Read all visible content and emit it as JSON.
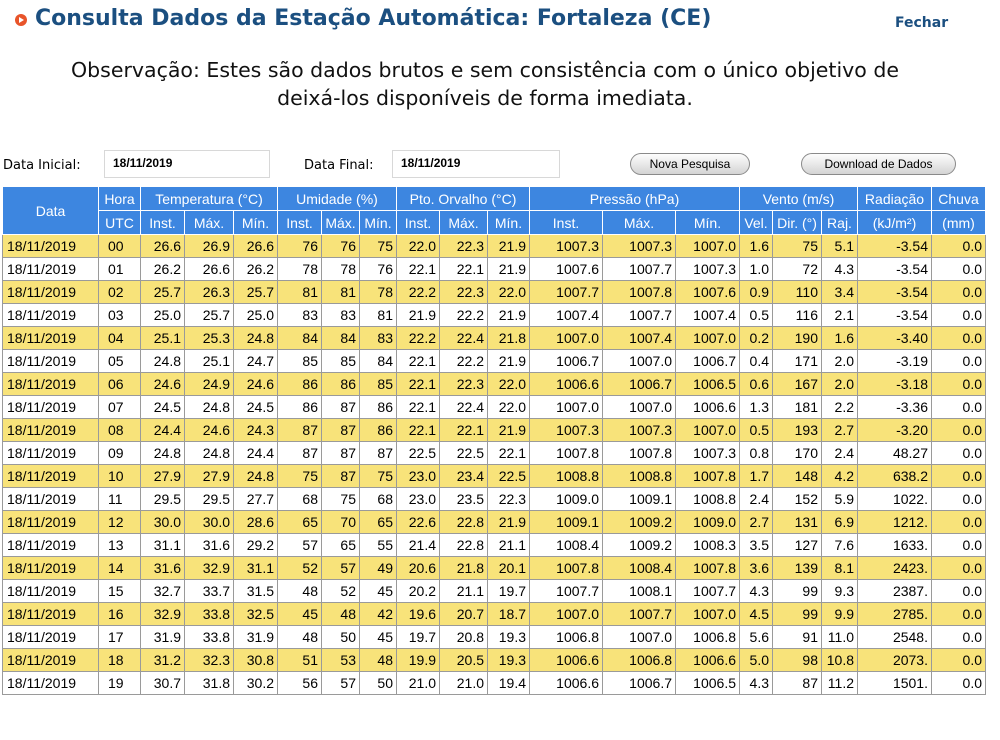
{
  "header": {
    "title": "Consulta Dados da Estação Automática: Fortaleza (CE)",
    "close_label": "Fechar"
  },
  "notice": {
    "line1": "Observação: Estes são dados brutos e sem consistência com o único objetivo de",
    "line2": "deixá-los disponíveis de forma imediata."
  },
  "filters": {
    "start_label": "Data Inicial:",
    "start_value": "18/11/2019",
    "end_label": "Data Final:",
    "end_value": "18/11/2019",
    "new_search_label": "Nova Pesquisa",
    "download_label": "Download de Dados"
  },
  "colors": {
    "header_bg": "#3d86e0",
    "odd_row": "#f8e37a",
    "title": "#1b4f80"
  },
  "table": {
    "groups": [
      "Data",
      "Hora",
      "Temperatura (°C)",
      "Umidade (%)",
      "Pto. Orvalho (°C)",
      "Pressão (hPa)",
      "Vento (m/s)",
      "Radiação",
      "Chuva"
    ],
    "subheaders": [
      "UTC",
      "Inst.",
      "Máx.",
      "Mín.",
      "Inst.",
      "Máx.",
      "Mín.",
      "Inst.",
      "Máx.",
      "Mín.",
      "Inst.",
      "Máx.",
      "Mín.",
      "Vel.",
      "Dir. (°)",
      "Raj.",
      "(kJ/m²)",
      "(mm)"
    ],
    "rows": [
      [
        "18/11/2019",
        "00",
        "26.6",
        "26.9",
        "26.6",
        "76",
        "76",
        "75",
        "22.0",
        "22.3",
        "21.9",
        "1007.3",
        "1007.3",
        "1007.0",
        "1.6",
        "75",
        "5.1",
        "-3.54",
        "0.0"
      ],
      [
        "18/11/2019",
        "01",
        "26.2",
        "26.6",
        "26.2",
        "78",
        "78",
        "76",
        "22.1",
        "22.1",
        "21.9",
        "1007.6",
        "1007.7",
        "1007.3",
        "1.0",
        "72",
        "4.3",
        "-3.54",
        "0.0"
      ],
      [
        "18/11/2019",
        "02",
        "25.7",
        "26.3",
        "25.7",
        "81",
        "81",
        "78",
        "22.2",
        "22.3",
        "22.0",
        "1007.7",
        "1007.8",
        "1007.6",
        "0.9",
        "110",
        "3.4",
        "-3.54",
        "0.0"
      ],
      [
        "18/11/2019",
        "03",
        "25.0",
        "25.7",
        "25.0",
        "83",
        "83",
        "81",
        "21.9",
        "22.2",
        "21.9",
        "1007.4",
        "1007.7",
        "1007.4",
        "0.5",
        "116",
        "2.1",
        "-3.54",
        "0.0"
      ],
      [
        "18/11/2019",
        "04",
        "25.1",
        "25.3",
        "24.8",
        "84",
        "84",
        "83",
        "22.2",
        "22.4",
        "21.8",
        "1007.0",
        "1007.4",
        "1007.0",
        "0.2",
        "190",
        "1.6",
        "-3.40",
        "0.0"
      ],
      [
        "18/11/2019",
        "05",
        "24.8",
        "25.1",
        "24.7",
        "85",
        "85",
        "84",
        "22.1",
        "22.2",
        "21.9",
        "1006.7",
        "1007.0",
        "1006.7",
        "0.4",
        "171",
        "2.0",
        "-3.19",
        "0.0"
      ],
      [
        "18/11/2019",
        "06",
        "24.6",
        "24.9",
        "24.6",
        "86",
        "86",
        "85",
        "22.1",
        "22.3",
        "22.0",
        "1006.6",
        "1006.7",
        "1006.5",
        "0.6",
        "167",
        "2.0",
        "-3.18",
        "0.0"
      ],
      [
        "18/11/2019",
        "07",
        "24.5",
        "24.8",
        "24.5",
        "86",
        "87",
        "86",
        "22.1",
        "22.4",
        "22.0",
        "1007.0",
        "1007.0",
        "1006.6",
        "1.3",
        "181",
        "2.2",
        "-3.36",
        "0.0"
      ],
      [
        "18/11/2019",
        "08",
        "24.4",
        "24.6",
        "24.3",
        "87",
        "87",
        "86",
        "22.1",
        "22.1",
        "21.9",
        "1007.3",
        "1007.3",
        "1007.0",
        "0.5",
        "193",
        "2.7",
        "-3.20",
        "0.0"
      ],
      [
        "18/11/2019",
        "09",
        "24.8",
        "24.8",
        "24.4",
        "87",
        "87",
        "87",
        "22.5",
        "22.5",
        "22.1",
        "1007.8",
        "1007.8",
        "1007.3",
        "0.8",
        "170",
        "2.4",
        "48.27",
        "0.0"
      ],
      [
        "18/11/2019",
        "10",
        "27.9",
        "27.9",
        "24.8",
        "75",
        "87",
        "75",
        "23.0",
        "23.4",
        "22.5",
        "1008.8",
        "1008.8",
        "1007.8",
        "1.7",
        "148",
        "4.2",
        "638.2",
        "0.0"
      ],
      [
        "18/11/2019",
        "11",
        "29.5",
        "29.5",
        "27.7",
        "68",
        "75",
        "68",
        "23.0",
        "23.5",
        "22.3",
        "1009.0",
        "1009.1",
        "1008.8",
        "2.4",
        "152",
        "5.9",
        "1022.",
        "0.0"
      ],
      [
        "18/11/2019",
        "12",
        "30.0",
        "30.0",
        "28.6",
        "65",
        "70",
        "65",
        "22.6",
        "22.8",
        "21.9",
        "1009.1",
        "1009.2",
        "1009.0",
        "2.7",
        "131",
        "6.9",
        "1212.",
        "0.0"
      ],
      [
        "18/11/2019",
        "13",
        "31.1",
        "31.6",
        "29.2",
        "57",
        "65",
        "55",
        "21.4",
        "22.8",
        "21.1",
        "1008.4",
        "1009.2",
        "1008.3",
        "3.5",
        "127",
        "7.6",
        "1633.",
        "0.0"
      ],
      [
        "18/11/2019",
        "14",
        "31.6",
        "32.9",
        "31.1",
        "52",
        "57",
        "49",
        "20.6",
        "21.8",
        "20.1",
        "1007.8",
        "1008.4",
        "1007.8",
        "3.6",
        "139",
        "8.1",
        "2423.",
        "0.0"
      ],
      [
        "18/11/2019",
        "15",
        "32.7",
        "33.7",
        "31.5",
        "48",
        "52",
        "45",
        "20.2",
        "21.1",
        "19.7",
        "1007.7",
        "1008.1",
        "1007.7",
        "4.3",
        "99",
        "9.3",
        "2387.",
        "0.0"
      ],
      [
        "18/11/2019",
        "16",
        "32.9",
        "33.8",
        "32.5",
        "45",
        "48",
        "42",
        "19.6",
        "20.7",
        "18.7",
        "1007.0",
        "1007.7",
        "1007.0",
        "4.5",
        "99",
        "9.9",
        "2785.",
        "0.0"
      ],
      [
        "18/11/2019",
        "17",
        "31.9",
        "33.8",
        "31.9",
        "48",
        "50",
        "45",
        "19.7",
        "20.8",
        "19.3",
        "1006.8",
        "1007.0",
        "1006.8",
        "5.6",
        "91",
        "11.0",
        "2548.",
        "0.0"
      ],
      [
        "18/11/2019",
        "18",
        "31.2",
        "32.3",
        "30.8",
        "51",
        "53",
        "48",
        "19.9",
        "20.5",
        "19.3",
        "1006.6",
        "1006.8",
        "1006.6",
        "5.0",
        "98",
        "10.8",
        "2073.",
        "0.0"
      ],
      [
        "18/11/2019",
        "19",
        "30.7",
        "31.8",
        "30.2",
        "56",
        "57",
        "50",
        "21.0",
        "21.0",
        "19.4",
        "1006.6",
        "1006.7",
        "1006.5",
        "4.3",
        "87",
        "11.2",
        "1501.",
        "0.0"
      ]
    ]
  }
}
